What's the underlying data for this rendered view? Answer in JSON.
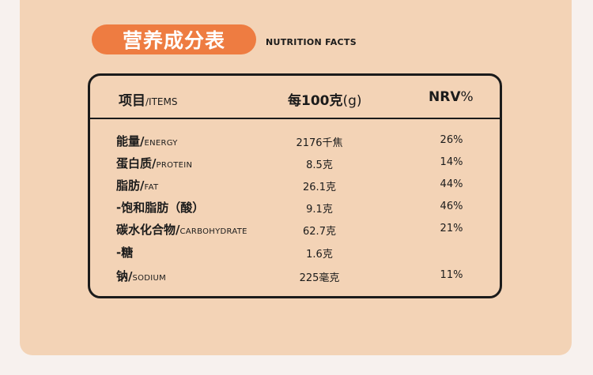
{
  "title": {
    "zh": "营养成分表",
    "en": "NUTRITION FACTS"
  },
  "colors": {
    "accent": "#ee7c41",
    "panel": "#f3d3b6",
    "border": "#1b1b1b"
  },
  "header": {
    "items_zh": "项目",
    "items_en": "/ITEMS",
    "per_bold": "每100克",
    "per_unit": "(g)",
    "nrv_bold": "NRV",
    "nrv_pct": "%"
  },
  "rows": [
    {
      "name_zh": "能量/",
      "name_en": "ENERGY",
      "value": "2176千焦",
      "nrv": "26%"
    },
    {
      "name_zh": "蛋白质/",
      "name_en": "PROTEIN",
      "value": "8.5克",
      "nrv": "14%"
    },
    {
      "name_zh": "脂肪/",
      "name_en": "FAT",
      "value": "26.1克",
      "nrv": "44%"
    },
    {
      "name_zh": "-饱和脂肪（酸）",
      "name_en": "",
      "value": "9.1克",
      "nrv": "46%"
    },
    {
      "name_zh": "碳水化合物/",
      "name_en": "CARBOHYDRATE",
      "value": "62.7克",
      "nrv": "21%"
    },
    {
      "name_zh": "-糖",
      "name_en": "",
      "value": "1.6克",
      "nrv": ""
    },
    {
      "name_zh": "钠/",
      "name_en": "SODIUM",
      "value": "225毫克",
      "nrv": "11%"
    }
  ]
}
